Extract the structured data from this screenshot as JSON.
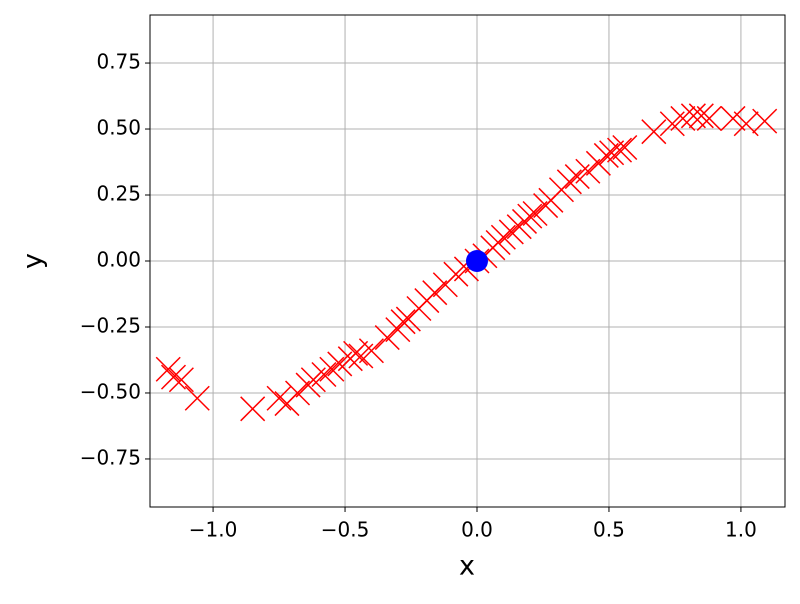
{
  "chart_data": {
    "type": "scatter",
    "xlabel": "x",
    "ylabel": "y",
    "grid": true,
    "xlim": [
      -1.239,
      1.167
    ],
    "ylim": [
      -0.932,
      0.932
    ],
    "xticks": [
      {
        "value": -1,
        "label": "−1.0"
      },
      {
        "value": -0.5,
        "label": "−0.5"
      },
      {
        "value": 0,
        "label": "0.0"
      },
      {
        "value": 0.5,
        "label": "0.5"
      },
      {
        "value": 1,
        "label": "1.0"
      }
    ],
    "yticks": [
      {
        "value": -0.75,
        "label": "−0.75"
      },
      {
        "value": -0.5,
        "label": "−0.50"
      },
      {
        "value": -0.25,
        "label": "−0.25"
      },
      {
        "value": 0,
        "label": "0.00"
      },
      {
        "value": 0.25,
        "label": "0.25"
      },
      {
        "value": 0.5,
        "label": "0.50"
      },
      0.75
    ],
    "series": [
      {
        "color": "#ff0000",
        "marker": "x",
        "x": [
          -1.17,
          -1.15,
          -1.12,
          -1.06,
          -0.85,
          -0.75,
          -0.72,
          -0.68,
          -0.64,
          -0.62,
          -0.58,
          -0.55,
          -0.52,
          -0.48,
          -0.46,
          -0.44,
          -0.4,
          -0.34,
          -0.3,
          -0.28,
          -0.26,
          -0.22,
          -0.19,
          -0.16,
          -0.12,
          -0.08,
          -0.04,
          0.0,
          0.03,
          0.06,
          0.08,
          0.1,
          0.13,
          0.16,
          0.18,
          0.2,
          0.22,
          0.26,
          0.28,
          0.32,
          0.35,
          0.38,
          0.42,
          0.46,
          0.49,
          0.51,
          0.54,
          0.56,
          0.67,
          0.74,
          0.78,
          0.82,
          0.85,
          0.88,
          0.97,
          1.02,
          1.09
        ],
        "values": [
          -0.41,
          -0.44,
          -0.45,
          -0.52,
          -0.56,
          -0.52,
          -0.54,
          -0.5,
          -0.47,
          -0.45,
          -0.43,
          -0.41,
          -0.39,
          -0.37,
          -0.35,
          -0.36,
          -0.34,
          -0.29,
          -0.26,
          -0.23,
          -0.22,
          -0.18,
          -0.15,
          -0.12,
          -0.09,
          -0.05,
          -0.03,
          0.0,
          0.02,
          0.05,
          0.07,
          0.09,
          0.11,
          0.13,
          0.15,
          0.17,
          0.18,
          0.21,
          0.23,
          0.27,
          0.3,
          0.32,
          0.34,
          0.37,
          0.4,
          0.41,
          0.42,
          0.43,
          0.49,
          0.52,
          0.54,
          0.55,
          0.55,
          0.54,
          0.54,
          0.52,
          0.53
        ]
      },
      {
        "color": "#0000ff",
        "marker": "o",
        "x": [
          0
        ],
        "values": [
          0
        ]
      }
    ]
  }
}
